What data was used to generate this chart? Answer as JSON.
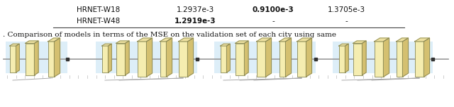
{
  "table_rows": [
    {
      "name": "HRNET-W18",
      "col1": "1.2937e-3",
      "col2": "0.9100e-3",
      "col3": "1.3705e-3",
      "col2_bold": true
    },
    {
      "name": "HRNET-W48",
      "col1": "1.2919e-3",
      "col2": "-",
      "col3": "-",
      "col1_bold": true
    }
  ],
  "caption_text": ". Comparison of models in terms of the MSE on the validation set of each city using same",
  "bg_color": "#ffffff",
  "text_color": "#111111",
  "line_color": "#555555",
  "box_fill": "#f5edb0",
  "box_top": "#ede0a0",
  "box_right": "#d4c070",
  "box_edge": "#888855",
  "highlight_bg": "#ddeef8",
  "figwidth": 6.4,
  "figheight": 1.52
}
